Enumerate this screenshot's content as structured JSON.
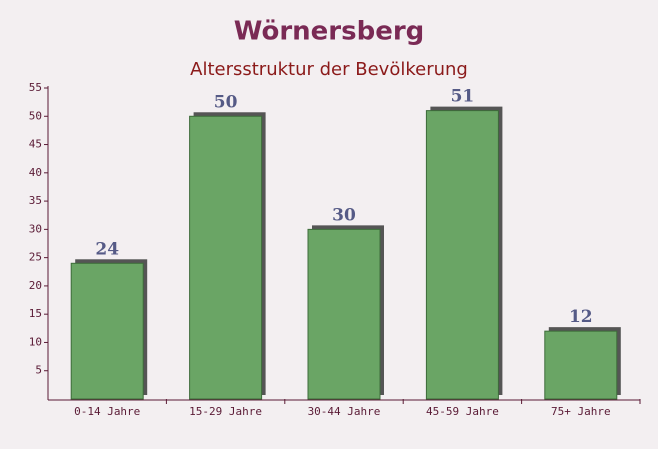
{
  "chart_data": {
    "type": "bar",
    "title": "Wörnersberg",
    "subtitle": "Altersstruktur der Bevölkerung",
    "categories": [
      "0-14 Jahre",
      "15-29 Jahre",
      "30-44 Jahre",
      "45-59 Jahre",
      "75+ Jahre"
    ],
    "values": [
      24,
      50,
      30,
      51,
      12
    ],
    "color": "#6aa565",
    "ylim": [
      0,
      55
    ],
    "yticks": [
      5,
      10,
      15,
      20,
      25,
      30,
      35,
      40,
      45,
      50,
      55
    ],
    "grid": false
  }
}
